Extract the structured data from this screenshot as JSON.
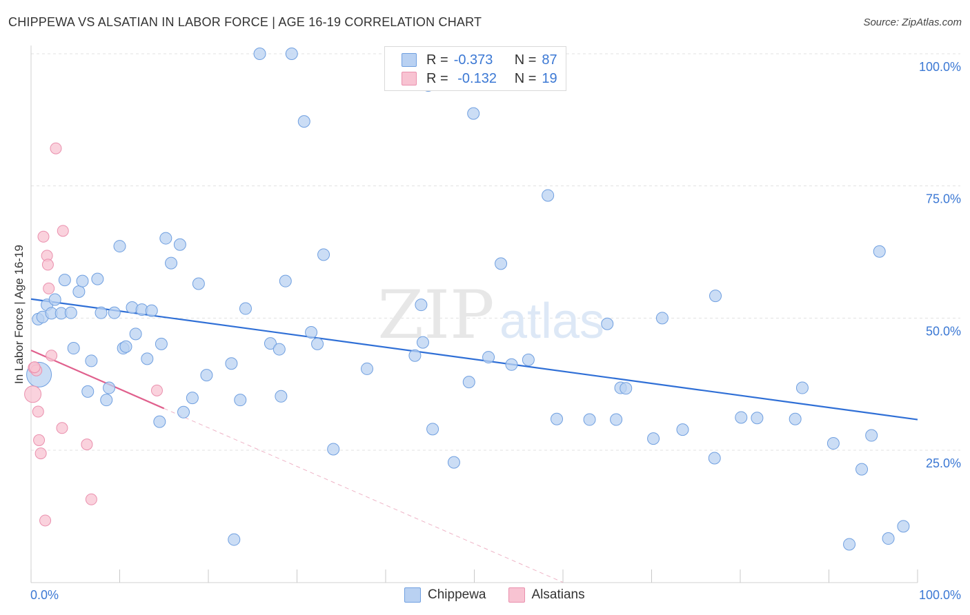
{
  "header": {
    "title": "CHIPPEWA VS ALSATIAN IN LABOR FORCE | AGE 16-19 CORRELATION CHART",
    "source": "Source: ZipAtlas.com"
  },
  "watermark": {
    "zip": "ZIP",
    "atlas": "atlas"
  },
  "legend": {
    "chippewa": {
      "r_label": "R =",
      "r_value": "-0.373",
      "n_label": "N =",
      "n_value": "87"
    },
    "alsatians": {
      "r_label": "R =",
      "r_value": " -0.132",
      "n_label": "N =",
      "n_value": "19"
    }
  },
  "bottom_legend": {
    "chippewa": "Chippewa",
    "alsatians": "Alsatians"
  },
  "colors": {
    "chippewa_fill": "#b9d1f2",
    "chippewa_stroke": "#6f9fe0",
    "chippewa_line": "#2f6fd6",
    "alsatians_fill": "#f8c3d2",
    "alsatians_stroke": "#ea8fad",
    "alsatians_line": "#e0608d",
    "tick_label": "#3b78d4"
  },
  "chart_data": {
    "type": "scatter",
    "title": "CHIPPEWA VS ALSATIAN IN LABOR FORCE | AGE 16-19 CORRELATION CHART",
    "xlabel": "",
    "ylabel": "In Labor Force | Age 16-19",
    "xlim": [
      0,
      100
    ],
    "ylim": [
      0,
      102
    ],
    "x_tick_labels": [
      "0.0%",
      "100.0%"
    ],
    "y_ticks": [
      25,
      50,
      75,
      100
    ],
    "y_tick_labels": [
      "25.0%",
      "50.0%",
      "75.0%",
      "100.0%"
    ],
    "grid": true,
    "legend_position": "top-center",
    "series": [
      {
        "name": "Chippewa",
        "r": -0.373,
        "n": 87,
        "trend": {
          "x": [
            0,
            100
          ],
          "y": [
            53.6,
            30.8
          ]
        },
        "points": [
          [
            0.8,
            49.8
          ],
          [
            1.3,
            50.2
          ],
          [
            1.8,
            52.5
          ],
          [
            2.3,
            50.9
          ],
          [
            2.7,
            53.5
          ],
          [
            3.4,
            50.9
          ],
          [
            3.8,
            57.2
          ],
          [
            4.5,
            51.0
          ],
          [
            4.8,
            44.3
          ],
          [
            5.4,
            55.0
          ],
          [
            5.8,
            57.0
          ],
          [
            6.4,
            36.1
          ],
          [
            6.8,
            41.9
          ],
          [
            7.5,
            57.4
          ],
          [
            7.9,
            51.0
          ],
          [
            8.5,
            34.5
          ],
          [
            8.8,
            36.8
          ],
          [
            9.4,
            51.0
          ],
          [
            10.0,
            63.6
          ],
          [
            10.4,
            44.3
          ],
          [
            10.7,
            44.6
          ],
          [
            11.4,
            52.0
          ],
          [
            11.8,
            47.0
          ],
          [
            12.5,
            51.6
          ],
          [
            13.1,
            42.3
          ],
          [
            13.6,
            51.4
          ],
          [
            14.5,
            30.4
          ],
          [
            14.7,
            45.1
          ],
          [
            15.2,
            65.1
          ],
          [
            15.8,
            60.4
          ],
          [
            16.8,
            63.9
          ],
          [
            17.2,
            32.2
          ],
          [
            18.2,
            34.9
          ],
          [
            18.9,
            56.5
          ],
          [
            19.8,
            39.2
          ],
          [
            22.6,
            41.4
          ],
          [
            22.9,
            8.1
          ],
          [
            23.6,
            34.5
          ],
          [
            24.2,
            51.8
          ],
          [
            25.8,
            100.0
          ],
          [
            27.0,
            45.2
          ],
          [
            28.0,
            44.1
          ],
          [
            28.2,
            35.2
          ],
          [
            28.7,
            57.0
          ],
          [
            29.4,
            100.0
          ],
          [
            30.8,
            87.2
          ],
          [
            31.6,
            47.3
          ],
          [
            32.3,
            45.1
          ],
          [
            33.0,
            62.0
          ],
          [
            34.1,
            25.2
          ],
          [
            37.9,
            40.4
          ],
          [
            43.3,
            42.9
          ],
          [
            44.0,
            52.5
          ],
          [
            44.2,
            45.4
          ],
          [
            44.8,
            94.0
          ],
          [
            45.3,
            29.0
          ],
          [
            47.7,
            22.7
          ],
          [
            49.4,
            37.9
          ],
          [
            49.9,
            88.7
          ],
          [
            51.6,
            42.6
          ],
          [
            53.0,
            60.3
          ],
          [
            54.2,
            41.2
          ],
          [
            56.1,
            42.1
          ],
          [
            58.3,
            73.2
          ],
          [
            59.3,
            30.9
          ],
          [
            63.0,
            30.8
          ],
          [
            65.0,
            48.9
          ],
          [
            66.0,
            30.8
          ],
          [
            66.5,
            36.8
          ],
          [
            67.1,
            36.7
          ],
          [
            70.2,
            27.2
          ],
          [
            71.2,
            50.0
          ],
          [
            73.5,
            28.9
          ],
          [
            77.1,
            23.5
          ],
          [
            77.2,
            54.2
          ],
          [
            80.1,
            31.2
          ],
          [
            81.9,
            31.1
          ],
          [
            86.2,
            30.9
          ],
          [
            87.0,
            36.8
          ],
          [
            90.5,
            26.3
          ],
          [
            92.3,
            7.2
          ],
          [
            93.7,
            21.4
          ],
          [
            94.8,
            27.8
          ],
          [
            95.7,
            62.6
          ],
          [
            96.7,
            8.3
          ],
          [
            98.4,
            10.6
          ],
          [
            0.9,
            39.3
          ]
        ]
      },
      {
        "name": "Alsatians",
        "r": -0.132,
        "n": 19,
        "trend": {
          "x": [
            0,
            15
          ],
          "y": [
            43.9,
            32.9
          ]
        },
        "trend_extended": {
          "x": [
            15,
            60
          ],
          "y": [
            32.9,
            0
          ]
        },
        "points": [
          [
            0.2,
            35.6
          ],
          [
            0.3,
            40.6
          ],
          [
            0.6,
            40.1
          ],
          [
            0.8,
            32.3
          ],
          [
            0.9,
            26.9
          ],
          [
            1.1,
            24.4
          ],
          [
            1.4,
            65.4
          ],
          [
            1.6,
            11.7
          ],
          [
            1.8,
            61.8
          ],
          [
            1.9,
            60.1
          ],
          [
            2.0,
            55.6
          ],
          [
            2.3,
            42.9
          ],
          [
            2.8,
            82.1
          ],
          [
            3.5,
            29.2
          ],
          [
            3.6,
            66.5
          ],
          [
            6.3,
            26.1
          ],
          [
            6.8,
            15.7
          ],
          [
            14.2,
            36.3
          ],
          [
            0.4,
            40.7
          ]
        ]
      }
    ]
  }
}
